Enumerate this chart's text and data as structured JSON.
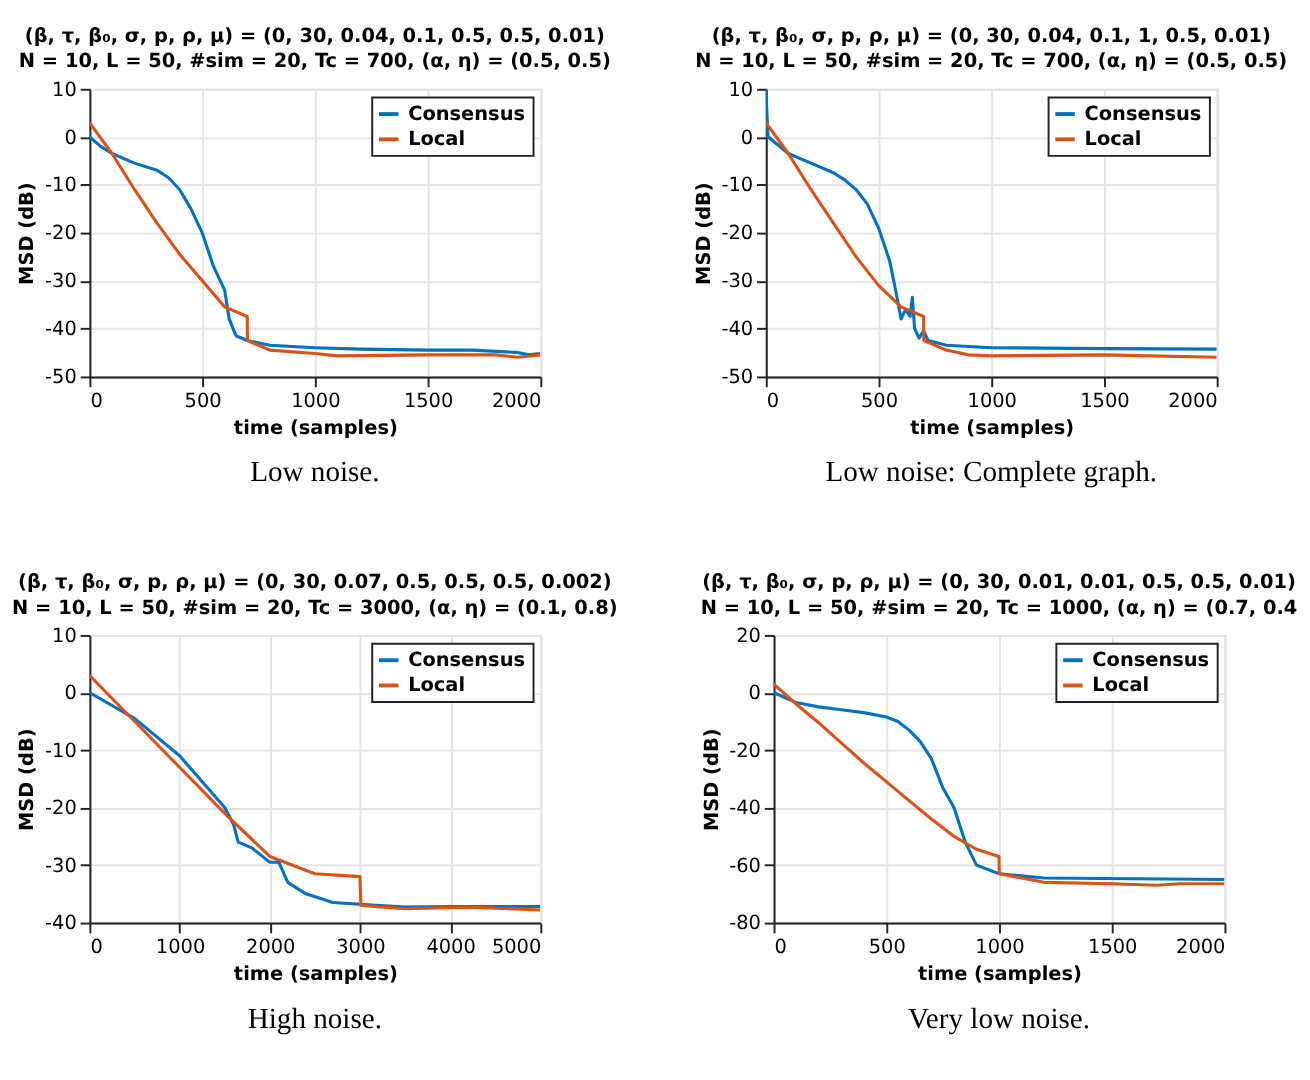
{
  "chart_data": [
    {
      "type": "line",
      "title": [
        "(β, τ, β₀, σ, p, ρ, μ) = (0, 30, 0.04, 0.1, 0.5, 0.5, 0.01)",
        "N = 10, L = 50, #sim = 20, Tc = 700, (α, η) = (0.5, 0.5)"
      ],
      "xlabel": "time (samples)",
      "ylabel": "MSD (dB)",
      "annotations": [
        "Low noise."
      ],
      "xlim": [
        0,
        2000
      ],
      "xticks": [
        0,
        500,
        1000,
        1500,
        2000
      ],
      "ylim": [
        -50,
        10
      ],
      "yticks": [
        -50,
        -40,
        -30,
        -20,
        -10,
        0,
        10
      ],
      "grid": true,
      "legend": "top right",
      "series": [
        {
          "name": "Consensus",
          "color": "#0072bd",
          "x": [
            0,
            50,
            100,
            200,
            300,
            350,
            400,
            450,
            500,
            550,
            600,
            620,
            650,
            700,
            800,
            1000,
            1200,
            1500,
            1700,
            1900,
            1950,
            2000
          ],
          "values": [
            0,
            -2,
            -3.5,
            -5.5,
            -7,
            -8.5,
            -11,
            -15,
            -20,
            -27,
            -32,
            -38,
            -41.5,
            -42.5,
            -43.5,
            -44,
            -44.3,
            -44.5,
            -44.5,
            -45,
            -45.5,
            -45.2
          ]
        },
        {
          "name": "Local",
          "color": "#d95319",
          "x": [
            0,
            100,
            200,
            300,
            400,
            500,
            600,
            700,
            701,
            750,
            800,
            1000,
            1100,
            1500,
            1800,
            1900,
            2000
          ],
          "values": [
            3,
            -3.5,
            -11,
            -18,
            -24.5,
            -30,
            -35.5,
            -37.5,
            -42.5,
            -43.5,
            -44.5,
            -45.2,
            -45.7,
            -45.5,
            -45.5,
            -46,
            -45.5
          ]
        }
      ]
    },
    {
      "type": "line",
      "title": [
        "(β, τ, β₀, σ, p, ρ, μ) = (0, 30, 0.04, 0.1, 1, 0.5, 0.01)",
        "N = 10, L = 50, #sim = 20, Tc = 700, (α, η) = (0.5, 0.5)"
      ],
      "xlabel": "time (samples)",
      "ylabel": "MSD (dB)",
      "annotations": [
        "Low noise: Complete graph."
      ],
      "xlim": [
        0,
        2000
      ],
      "xticks": [
        0,
        500,
        1000,
        1500,
        2000
      ],
      "ylim": [
        -50,
        10
      ],
      "yticks": [
        -50,
        -40,
        -30,
        -20,
        -10,
        0,
        10
      ],
      "grid": true,
      "legend": "top right",
      "series": [
        {
          "name": "Consensus",
          "color": "#0072bd",
          "x": [
            0,
            10,
            100,
            200,
            300,
            350,
            400,
            450,
            500,
            550,
            580,
            600,
            620,
            640,
            650,
            660,
            680,
            700,
            720,
            800,
            1000,
            1500,
            2000
          ],
          "values": [
            10,
            0,
            -3.5,
            -5.5,
            -7.5,
            -9,
            -11,
            -14,
            -19,
            -26,
            -33,
            -38,
            -36,
            -37.5,
            -33.5,
            -40,
            -42,
            -40.5,
            -42.5,
            -43.5,
            -44,
            -44.2,
            -44.3
          ]
        },
        {
          "name": "Local",
          "color": "#d95319",
          "x": [
            0,
            100,
            200,
            300,
            400,
            500,
            600,
            700,
            701,
            800,
            900,
            1000,
            1500,
            2000
          ],
          "values": [
            3,
            -3.5,
            -11,
            -18,
            -25,
            -31,
            -35.5,
            -37.5,
            -42.5,
            -44.5,
            -45.5,
            -45.7,
            -45.5,
            -46
          ]
        }
      ]
    },
    {
      "type": "line",
      "title": [
        "(β, τ, β₀, σ, p, ρ, μ) = (0, 30, 0.07, 0.5, 0.5, 0.5, 0.002)",
        "N = 10, L = 50, #sim = 20, Tc = 3000, (α, η) = (0.1, 0.8)"
      ],
      "xlabel": "time (samples)",
      "ylabel": "MSD (dB)",
      "annotations": [
        "High noise."
      ],
      "xlim": [
        0,
        5000
      ],
      "xticks": [
        0,
        1000,
        2000,
        3000,
        4000,
        5000
      ],
      "ylim": [
        -40,
        10
      ],
      "yticks": [
        -40,
        -30,
        -20,
        -10,
        0,
        10
      ],
      "grid": true,
      "legend": "top right",
      "series": [
        {
          "name": "Consensus",
          "color": "#0072bd",
          "x": [
            0,
            500,
            1000,
            1500,
            1600,
            1650,
            1800,
            2000,
            2100,
            2200,
            2400,
            2700,
            3000,
            3500,
            4000,
            5000
          ],
          "values": [
            0,
            -4.5,
            -11,
            -20,
            -23,
            -26,
            -27,
            -29.5,
            -29.5,
            -33,
            -35,
            -36.5,
            -36.8,
            -37.3,
            -37.2,
            -37.2
          ]
        },
        {
          "name": "Local",
          "color": "#d95319",
          "x": [
            0,
            500,
            1000,
            1500,
            2000,
            2500,
            3000,
            3010,
            3500,
            4200,
            5000
          ],
          "values": [
            3,
            -5,
            -13,
            -21,
            -28.5,
            -31.5,
            -32,
            -37,
            -37.6,
            -37.3,
            -37.8
          ]
        }
      ]
    },
    {
      "type": "line",
      "title": [
        "(β, τ, β₀, σ, p, ρ, μ) = (0, 30, 0.01, 0.01, 0.5, 0.5, 0.01)",
        "N = 10, L = 50, #sim = 20, Tc = 1000, (α, η) = (0.7, 0.4"
      ],
      "xlabel": "time (samples)",
      "ylabel": "MSD (dB)",
      "annotations": [
        "Very low noise."
      ],
      "xlim": [
        0,
        2000
      ],
      "xticks": [
        0,
        500,
        1000,
        1500,
        2000
      ],
      "ylim": [
        -80,
        20
      ],
      "yticks": [
        -80,
        -60,
        -40,
        -20,
        0,
        20
      ],
      "grid": true,
      "legend": "top right",
      "series": [
        {
          "name": "Consensus",
          "color": "#0072bd",
          "x": [
            0,
            100,
            200,
            300,
            400,
            500,
            550,
            600,
            650,
            700,
            750,
            800,
            850,
            900,
            1000,
            1200,
            2000
          ],
          "values": [
            0,
            -3.5,
            -5,
            -6,
            -7,
            -8.5,
            -10,
            -13,
            -17,
            -23,
            -33,
            -40,
            -52,
            -60,
            -63,
            -64.5,
            -65
          ]
        },
        {
          "name": "Local",
          "color": "#d95319",
          "x": [
            0,
            100,
            200,
            300,
            400,
            500,
            600,
            700,
            800,
            900,
            1000,
            1001,
            1200,
            1500,
            1700,
            1800,
            2000
          ],
          "values": [
            3,
            -4,
            -10.5,
            -17.5,
            -24.5,
            -31,
            -37.5,
            -44,
            -50,
            -54.5,
            -57,
            -63,
            -66,
            -66.5,
            -67,
            -66.5,
            -66.5
          ]
        }
      ]
    }
  ]
}
